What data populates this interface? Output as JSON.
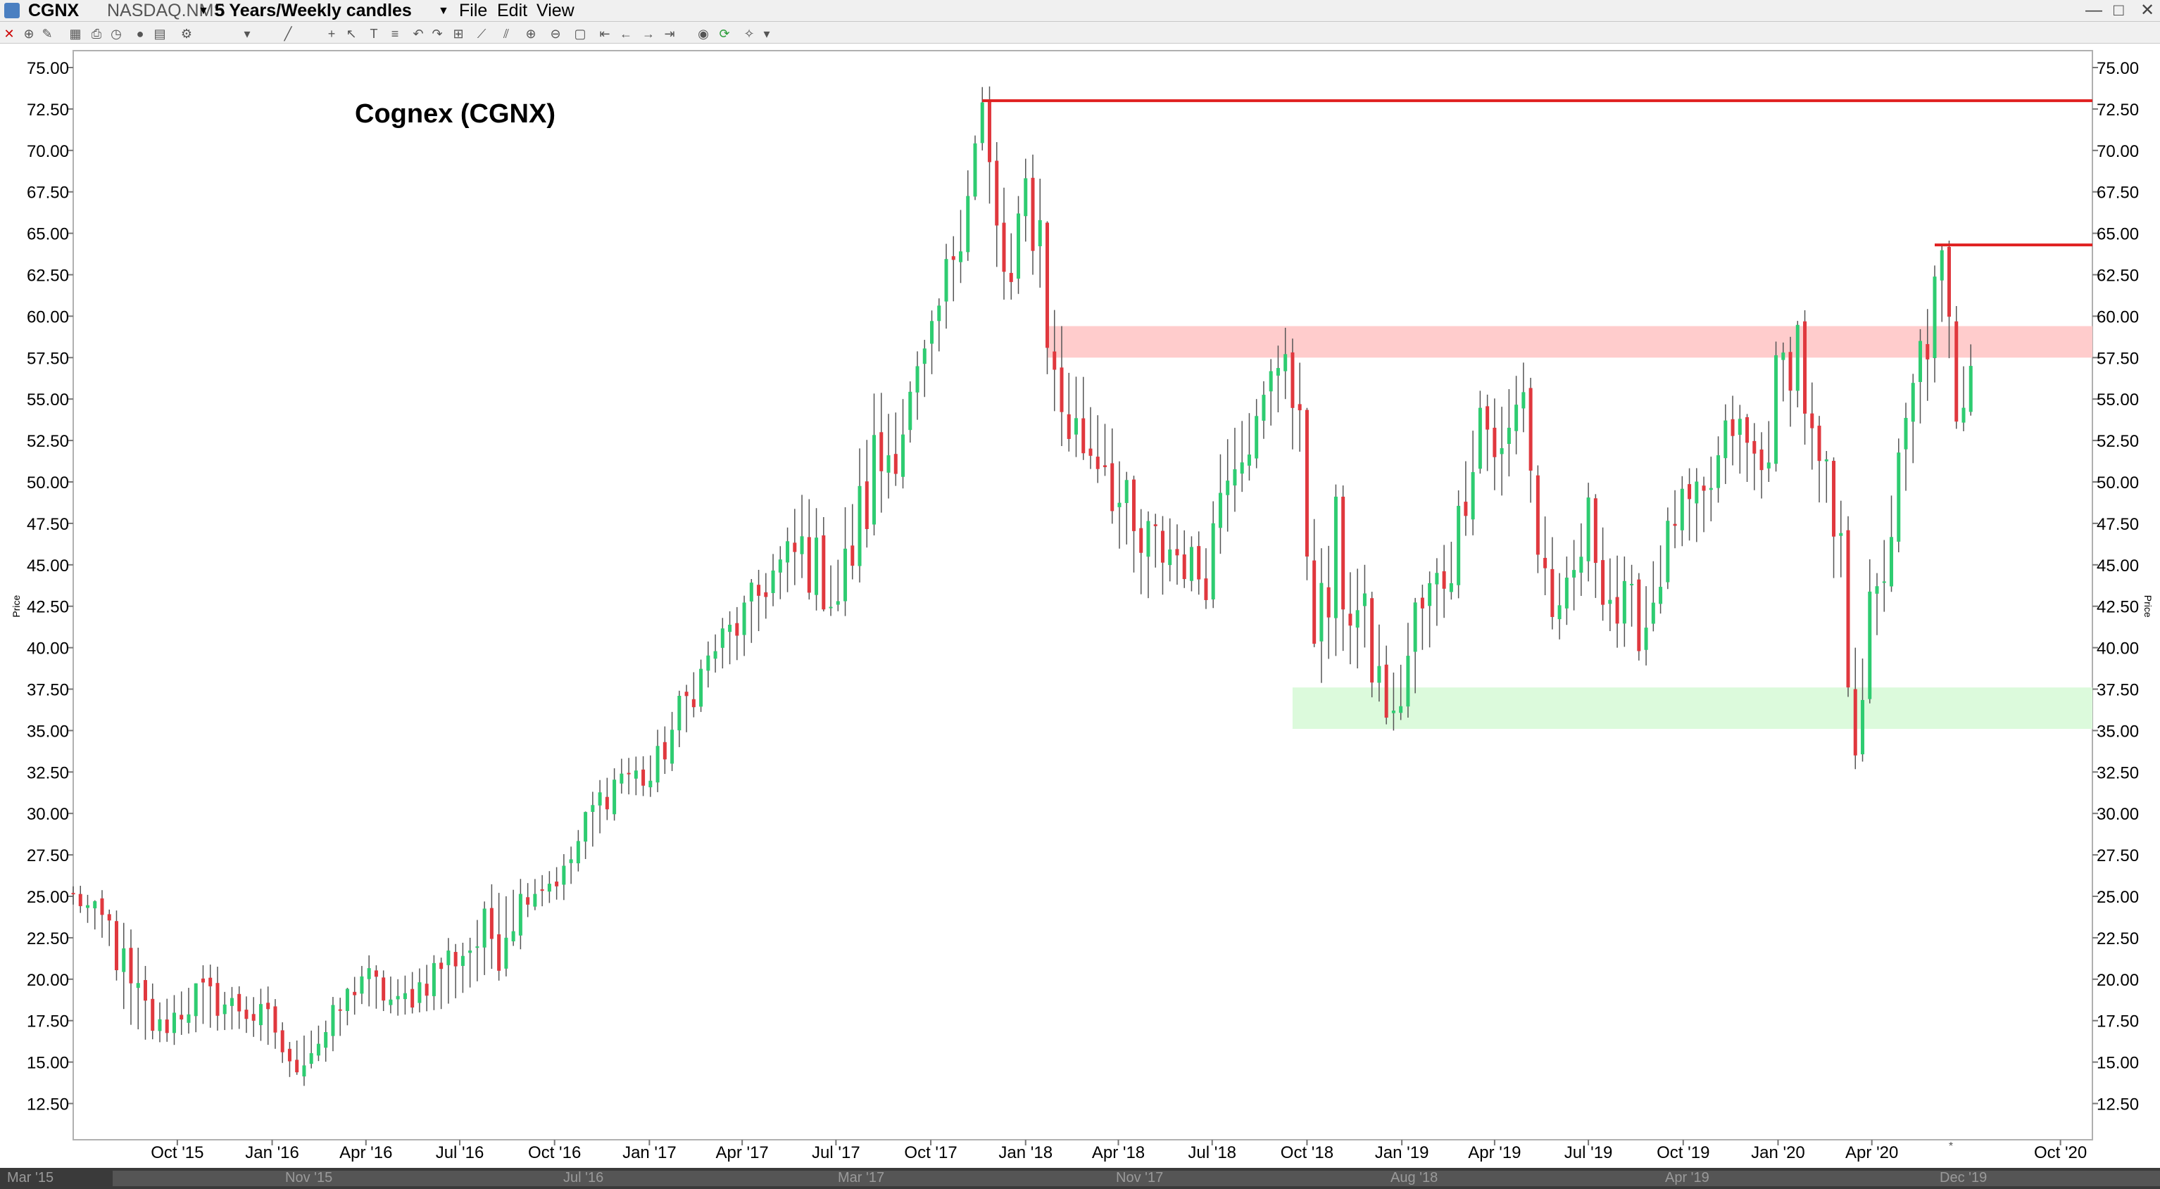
{
  "window": {
    "symbol": "CGNX",
    "exchange": "NASDAQ.NMS",
    "period": "5 Years/Weekly candles",
    "menus": [
      "File",
      "Edit",
      "View"
    ],
    "window_controls": [
      "—",
      "□",
      "✕"
    ]
  },
  "toolbar": {
    "icons": [
      "close-icon",
      "crosshair-icon",
      "draw-icon",
      "grid-icon",
      "print-icon",
      "clock-icon",
      "circle-icon",
      "layout-icon",
      "settings-icon",
      "dropdown-icon",
      "line-icon",
      "cross-icon",
      "cursor-icon",
      "text-icon",
      "fib-icon",
      "undo-icon",
      "redo-icon",
      "measure-icon",
      "trendline-icon",
      "channel-icon",
      "zoom-in-icon",
      "zoom-out-icon",
      "zoom-box-icon",
      "range-start-icon",
      "range-left-icon",
      "range-right-icon",
      "range-end-icon",
      "palette-icon",
      "refresh-icon",
      "tools-icon",
      "dropdown-icon"
    ]
  },
  "chart_data": {
    "type": "candlestick",
    "title": "Cognex (CGNX)",
    "ylabel": "Price",
    "ylim": [
      10.0,
      76.5
    ],
    "y_ticks": [
      "75.00",
      "72.50",
      "70.00",
      "67.50",
      "65.00",
      "62.50",
      "60.00",
      "57.50",
      "55.00",
      "52.50",
      "50.00",
      "47.50",
      "45.00",
      "42.50",
      "40.00",
      "37.50",
      "35.00",
      "32.50",
      "30.00",
      "27.50",
      "25.00",
      "22.50",
      "20.00",
      "17.50",
      "15.00",
      "12.50"
    ],
    "x_ticks": [
      {
        "label": "Oct '15",
        "date": "2015-10-01"
      },
      {
        "label": "Jan '16",
        "date": "2016-01-01"
      },
      {
        "label": "Apr '16",
        "date": "2016-04-01"
      },
      {
        "label": "Jul '16",
        "date": "2016-07-01"
      },
      {
        "label": "Oct '16",
        "date": "2016-10-01"
      },
      {
        "label": "Jan '17",
        "date": "2017-01-01"
      },
      {
        "label": "Apr '17",
        "date": "2017-04-01"
      },
      {
        "label": "Jul '17",
        "date": "2017-07-01"
      },
      {
        "label": "Oct '17",
        "date": "2017-10-01"
      },
      {
        "label": "Jan '18",
        "date": "2018-01-01"
      },
      {
        "label": "Apr '18",
        "date": "2018-04-01"
      },
      {
        "label": "Jul '18",
        "date": "2018-07-01"
      },
      {
        "label": "Oct '18",
        "date": "2018-10-01"
      },
      {
        "label": "Jan '19",
        "date": "2019-01-01"
      },
      {
        "label": "Apr '19",
        "date": "2019-04-01"
      },
      {
        "label": "Jul '19",
        "date": "2019-07-01"
      },
      {
        "label": "Oct '19",
        "date": "2019-10-01"
      },
      {
        "label": "Jan '20",
        "date": "2020-01-01"
      },
      {
        "label": "Apr '20",
        "date": "2020-04-01"
      },
      {
        "label": "Oct '20",
        "date": "2020-10-01"
      }
    ],
    "x_range": [
      "2015-06-22",
      "2020-11-01"
    ],
    "date_axis_point_label": "*",
    "overview_labels": [
      "Mar '15",
      "Nov '15",
      "Jul '16",
      "Mar '17",
      "Nov '17",
      "Aug '18",
      "Apr '19",
      "Dec '19"
    ],
    "up_color": "#2ecc71",
    "down_color": "#e0383e",
    "resistance_lines": [
      {
        "price": 73.0,
        "start": "2017-11-20",
        "end": "2020-11-01",
        "color": "#e02020"
      },
      {
        "price": 64.3,
        "start": "2020-06-01",
        "end": "2020-11-01",
        "color": "#e02020"
      }
    ],
    "zones": [
      {
        "from": 57.5,
        "to": 59.4,
        "start": "2018-01-22",
        "end": "2020-11-01",
        "color": "#ffcccc"
      },
      {
        "from": 35.1,
        "to": 37.6,
        "start": "2018-09-17",
        "end": "2020-11-01",
        "color": "#dcfadc"
      }
    ],
    "anchors": [
      {
        "date": "2015-06-22",
        "close": 25.0,
        "low": 24.5,
        "high": 25.6
      },
      {
        "date": "2015-07-27",
        "close": 23.2,
        "low": 22.0,
        "high": 24.2
      },
      {
        "date": "2015-08-17",
        "close": 18.5,
        "low": 16.3,
        "high": 23.0
      },
      {
        "date": "2015-09-14",
        "close": 17.0,
        "low": 16.4,
        "high": 18.6
      },
      {
        "date": "2015-10-19",
        "close": 19.0,
        "low": 16.8,
        "high": 19.7
      },
      {
        "date": "2015-11-30",
        "close": 18.3,
        "low": 17.0,
        "high": 19.0
      },
      {
        "date": "2016-01-04",
        "close": 17.0,
        "low": 15.8,
        "high": 18.8
      },
      {
        "date": "2016-01-18",
        "close": 14.5,
        "low": 14.1,
        "high": 16.0
      },
      {
        "date": "2016-02-22",
        "close": 16.8,
        "low": 15.3,
        "high": 17.5
      },
      {
        "date": "2016-03-28",
        "close": 20.3,
        "low": 18.5,
        "high": 20.8
      },
      {
        "date": "2016-05-02",
        "close": 18.3,
        "low": 17.8,
        "high": 20.0
      },
      {
        "date": "2016-06-13",
        "close": 20.9,
        "low": 18.2,
        "high": 21.3
      },
      {
        "date": "2016-07-11",
        "close": 22.0,
        "low": 19.5,
        "high": 22.5
      },
      {
        "date": "2016-08-08",
        "close": 23.0,
        "low": 21.0,
        "high": 26.8
      },
      {
        "date": "2016-09-05",
        "close": 25.3,
        "low": 24.0,
        "high": 25.8
      },
      {
        "date": "2016-10-10",
        "close": 26.3,
        "low": 25.0,
        "high": 27.0
      },
      {
        "date": "2016-11-07",
        "close": 30.2,
        "low": 28.0,
        "high": 31.0
      },
      {
        "date": "2016-12-05",
        "close": 32.5,
        "low": 31.2,
        "high": 33.3
      },
      {
        "date": "2017-01-02",
        "close": 32.0,
        "low": 31.0,
        "high": 33.5
      },
      {
        "date": "2017-01-30",
        "close": 36.0,
        "low": 34.0,
        "high": 37.0
      },
      {
        "date": "2017-03-06",
        "close": 40.0,
        "low": 38.5,
        "high": 40.8
      },
      {
        "date": "2017-04-03",
        "close": 41.8,
        "low": 39.5,
        "high": 43.0
      },
      {
        "date": "2017-05-01",
        "close": 44.5,
        "low": 42.5,
        "high": 45.0
      },
      {
        "date": "2017-05-29",
        "close": 45.8,
        "low": 44.2,
        "high": 49.5
      },
      {
        "date": "2017-07-03",
        "close": 43.0,
        "low": 42.2,
        "high": 46.8
      },
      {
        "date": "2017-08-07",
        "close": 50.5,
        "low": 47.0,
        "high": 55.5
      },
      {
        "date": "2017-09-04",
        "close": 53.5,
        "low": 51.0,
        "high": 55.0
      },
      {
        "date": "2017-10-02",
        "close": 58.5,
        "low": 56.5,
        "high": 59.2
      },
      {
        "date": "2017-10-30",
        "close": 66.0,
        "low": 62.0,
        "high": 66.7
      },
      {
        "date": "2017-11-20",
        "close": 72.5,
        "low": 70.0,
        "high": 73.0
      },
      {
        "date": "2017-12-04",
        "close": 64.0,
        "low": 61.0,
        "high": 70.5
      },
      {
        "date": "2017-12-18",
        "close": 61.5,
        "low": 61.0,
        "high": 65.0
      },
      {
        "date": "2018-01-01",
        "close": 67.5,
        "low": 64.5,
        "high": 69.5
      },
      {
        "date": "2018-01-15",
        "close": 65.2,
        "low": 60.5,
        "high": 70.0
      },
      {
        "date": "2018-01-29",
        "close": 55.5,
        "low": 52.5,
        "high": 60.5
      },
      {
        "date": "2018-02-19",
        "close": 52.8,
        "low": 51.5,
        "high": 57.8
      },
      {
        "date": "2018-03-19",
        "close": 51.5,
        "low": 50.8,
        "high": 54.8
      },
      {
        "date": "2018-04-16",
        "close": 45.5,
        "low": 40.0,
        "high": 48.5
      },
      {
        "date": "2018-05-21",
        "close": 46.0,
        "low": 44.0,
        "high": 47.8
      },
      {
        "date": "2018-06-25",
        "close": 44.2,
        "low": 43.0,
        "high": 46.0
      },
      {
        "date": "2018-07-16",
        "close": 52.8,
        "low": 47.0,
        "high": 54.5
      },
      {
        "date": "2018-08-13",
        "close": 53.2,
        "low": 51.8,
        "high": 55.0
      },
      {
        "date": "2018-09-10",
        "close": 58.8,
        "low": 55.0,
        "high": 59.3
      },
      {
        "date": "2018-09-24",
        "close": 50.5,
        "low": 48.0,
        "high": 58.0
      },
      {
        "date": "2018-10-15",
        "close": 40.5,
        "low": 36.2,
        "high": 46.0
      },
      {
        "date": "2018-10-29",
        "close": 45.5,
        "low": 39.5,
        "high": 47.8
      },
      {
        "date": "2018-11-26",
        "close": 40.5,
        "low": 38.5,
        "high": 45.0
      },
      {
        "date": "2018-12-24",
        "close": 35.2,
        "low": 35.0,
        "high": 38.5
      },
      {
        "date": "2019-01-14",
        "close": 41.5,
        "low": 37.0,
        "high": 43.0
      },
      {
        "date": "2019-02-18",
        "close": 45.2,
        "low": 43.0,
        "high": 47.0
      },
      {
        "date": "2019-03-18",
        "close": 54.5,
        "low": 50.5,
        "high": 55.5
      },
      {
        "date": "2019-04-08",
        "close": 51.0,
        "low": 49.0,
        "high": 54.8
      },
      {
        "date": "2019-04-29",
        "close": 56.0,
        "low": 53.0,
        "high": 57.2
      },
      {
        "date": "2019-05-13",
        "close": 46.0,
        "low": 44.5,
        "high": 51.0
      },
      {
        "date": "2019-06-03",
        "close": 41.0,
        "low": 40.5,
        "high": 44.5
      },
      {
        "date": "2019-07-01",
        "close": 47.5,
        "low": 44.0,
        "high": 48.5
      },
      {
        "date": "2019-07-29",
        "close": 42.0,
        "low": 40.0,
        "high": 46.0
      },
      {
        "date": "2019-08-26",
        "close": 41.5,
        "low": 40.2,
        "high": 44.0
      },
      {
        "date": "2019-09-23",
        "close": 48.0,
        "low": 46.0,
        "high": 49.5
      },
      {
        "date": "2019-10-21",
        "close": 48.5,
        "low": 46.5,
        "high": 50.3
      },
      {
        "date": "2019-11-18",
        "close": 53.5,
        "low": 51.0,
        "high": 55.2
      },
      {
        "date": "2019-12-16",
        "close": 50.5,
        "low": 49.0,
        "high": 53.0
      },
      {
        "date": "2019-12-30",
        "close": 55.5,
        "low": 51.0,
        "high": 56.8
      },
      {
        "date": "2020-01-20",
        "close": 58.8,
        "low": 54.5,
        "high": 59.3
      },
      {
        "date": "2020-02-03",
        "close": 51.5,
        "low": 50.0,
        "high": 56.0
      },
      {
        "date": "2020-02-24",
        "close": 46.5,
        "low": 41.0,
        "high": 49.8
      },
      {
        "date": "2020-03-16",
        "close": 37.5,
        "low": 35.2,
        "high": 47.0
      },
      {
        "date": "2020-04-06",
        "close": 42.5,
        "low": 40.0,
        "high": 44.5
      },
      {
        "date": "2020-04-27",
        "close": 50.0,
        "low": 46.5,
        "high": 52.0
      },
      {
        "date": "2020-05-18",
        "close": 57.5,
        "low": 53.0,
        "high": 58.5
      },
      {
        "date": "2020-06-08",
        "close": 62.0,
        "low": 57.5,
        "high": 64.3
      },
      {
        "date": "2020-06-22",
        "close": 55.0,
        "low": 54.0,
        "high": 59.5
      },
      {
        "date": "2020-07-06",
        "close": 57.0,
        "low": 54.0,
        "high": 58.3
      }
    ]
  }
}
